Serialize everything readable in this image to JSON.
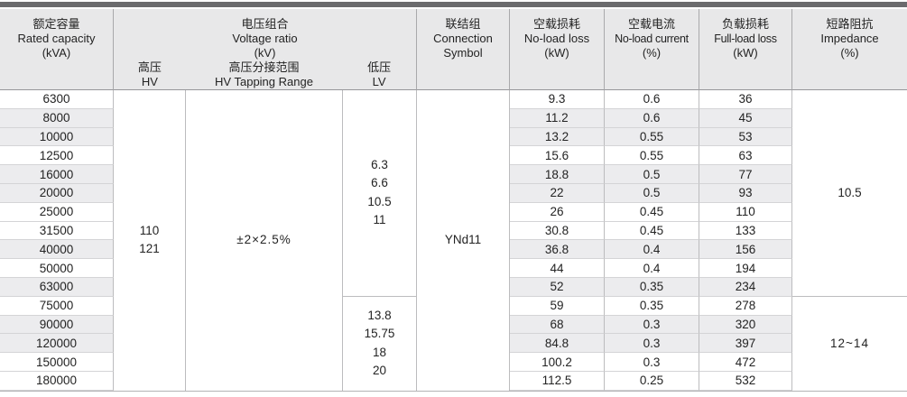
{
  "table": {
    "header": {
      "rated_capacity": {
        "zh": "额定容量",
        "en": "Rated capacity",
        "unit": "(kVA)"
      },
      "voltage_ratio": {
        "zh": "电压组合",
        "en": "Voltage ratio",
        "unit": "(kV)"
      },
      "hv": {
        "zh": "高压",
        "en": "HV"
      },
      "hv_tapping": {
        "zh": "高压分接范围",
        "en": "HV Tapping Range"
      },
      "lv": {
        "zh": "低压",
        "en": "LV"
      },
      "connection": {
        "zh": "联结组",
        "en": "Connection",
        "en2": "Symbol"
      },
      "no_load_loss": {
        "zh": "空载损耗",
        "en": "No-load loss",
        "unit": "(kW)"
      },
      "no_load_current": {
        "zh": "空载电流",
        "en": "No-load current",
        "unit": "(%)"
      },
      "full_load_loss": {
        "zh": "负载损耗",
        "en": "Full-load loss",
        "unit": "(kW)"
      },
      "impedance": {
        "zh": "短路阻抗",
        "en": "Impedance",
        "unit": "(%)"
      }
    },
    "merged": {
      "hv_values": [
        "110",
        "121"
      ],
      "tapping_range": "±2×2.5%",
      "lv_group1": [
        "6.3",
        "6.6",
        "10.5",
        "11"
      ],
      "lv_group2": [
        "13.8",
        "15.75",
        "18",
        "20"
      ],
      "connection_symbol": "YNd11",
      "impedance_group1": "10.5",
      "impedance_group2": "12~14"
    },
    "rows": [
      {
        "capacity": "6300",
        "no_load_loss": "9.3",
        "no_load_current": "0.6",
        "full_load_loss": "36"
      },
      {
        "capacity": "8000",
        "no_load_loss": "11.2",
        "no_load_current": "0.6",
        "full_load_loss": "45"
      },
      {
        "capacity": "10000",
        "no_load_loss": "13.2",
        "no_load_current": "0.55",
        "full_load_loss": "53"
      },
      {
        "capacity": "12500",
        "no_load_loss": "15.6",
        "no_load_current": "0.55",
        "full_load_loss": "63"
      },
      {
        "capacity": "16000",
        "no_load_loss": "18.8",
        "no_load_current": "0.5",
        "full_load_loss": "77"
      },
      {
        "capacity": "20000",
        "no_load_loss": "22",
        "no_load_current": "0.5",
        "full_load_loss": "93"
      },
      {
        "capacity": "25000",
        "no_load_loss": "26",
        "no_load_current": "0.45",
        "full_load_loss": "110"
      },
      {
        "capacity": "31500",
        "no_load_loss": "30.8",
        "no_load_current": "0.45",
        "full_load_loss": "133"
      },
      {
        "capacity": "40000",
        "no_load_loss": "36.8",
        "no_load_current": "0.4",
        "full_load_loss": "156"
      },
      {
        "capacity": "50000",
        "no_load_loss": "44",
        "no_load_current": "0.4",
        "full_load_loss": "194"
      },
      {
        "capacity": "63000",
        "no_load_loss": "52",
        "no_load_current": "0.35",
        "full_load_loss": "234"
      },
      {
        "capacity": "75000",
        "no_load_loss": "59",
        "no_load_current": "0.35",
        "full_load_loss": "278"
      },
      {
        "capacity": "90000",
        "no_load_loss": "68",
        "no_load_current": "0.3",
        "full_load_loss": "320"
      },
      {
        "capacity": "120000",
        "no_load_loss": "84.8",
        "no_load_current": "0.3",
        "full_load_loss": "397"
      },
      {
        "capacity": "150000",
        "no_load_loss": "100.2",
        "no_load_current": "0.3",
        "full_load_loss": "472"
      },
      {
        "capacity": "180000",
        "no_load_loss": "112.5",
        "no_load_current": "0.25",
        "full_load_loss": "532"
      }
    ]
  }
}
